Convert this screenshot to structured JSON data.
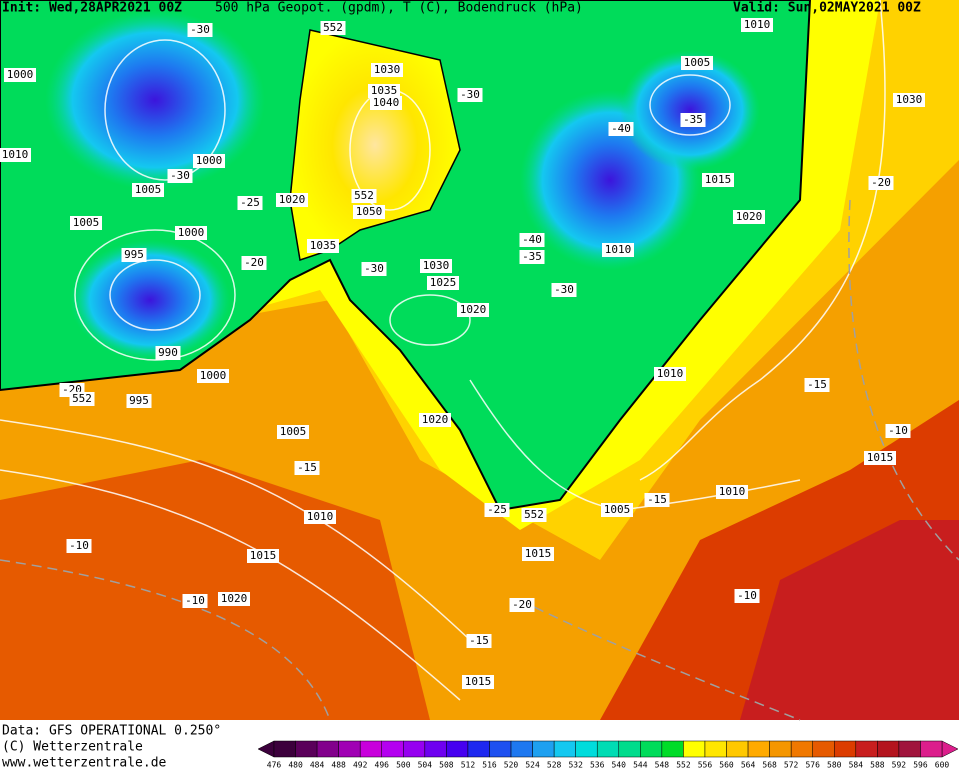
{
  "header": {
    "init": "Init: Wed,28APR2021 00Z",
    "title": "500 hPa Geopot. (gpdm), T (C), Bodendruck (hPa)",
    "valid": "Valid: Sun,02MAY2021 00Z"
  },
  "footer": {
    "data": "Data: GFS OPERATIONAL 0.250°",
    "copyright": "(C) Wetterzentrale",
    "url": "www.wetterzentrale.de"
  },
  "colorbar": {
    "labels": [
      476,
      480,
      484,
      488,
      492,
      496,
      500,
      504,
      508,
      512,
      516,
      520,
      524,
      528,
      532,
      536,
      540,
      544,
      548,
      552,
      556,
      560,
      564,
      568,
      572,
      576,
      580,
      584,
      588,
      592,
      596,
      600
    ],
    "colors": [
      "#3c003c",
      "#5a005a",
      "#82008c",
      "#a000b4",
      "#c800dc",
      "#b400f0",
      "#9600f0",
      "#6e00f0",
      "#4600f0",
      "#1e28f0",
      "#1e50f0",
      "#1e78f0",
      "#1ea0f0",
      "#14c8f0",
      "#00dcdc",
      "#00dcb4",
      "#00dc8c",
      "#00dc5a",
      "#00dc28",
      "#ffff00",
      "#ffe600",
      "#ffc800",
      "#ffaa00",
      "#f59600",
      "#f07800",
      "#e65a00",
      "#dc3c00",
      "#c81e1e",
      "#b4141e",
      "#a0143c",
      "#dc1e8c"
    ]
  },
  "map": {
    "labels": [
      "-30",
      "552",
      "1010",
      "1000",
      "1030",
      "1005",
      "1030",
      "1035",
      "1040",
      "-30",
      "-40",
      "-35",
      "1010",
      "1000",
      "-30",
      "1015",
      "-20",
      "1005",
      "1020",
      "-25",
      "552",
      "1050",
      "1020",
      "1005",
      "1000",
      "1035",
      "-40",
      "-35",
      "1010",
      "995",
      "-20",
      "-30",
      "1030",
      "1025",
      "-30",
      "1020",
      "990",
      "1000",
      "-20",
      "552",
      "995",
      "1010",
      "-15",
      "1020",
      "1005",
      "-10",
      "-15",
      "1015",
      "1010",
      "-15",
      "-25",
      "552",
      "1005",
      "1010",
      "-10",
      "1015",
      "1015",
      "-10",
      "1020",
      "-10",
      "-20",
      "-15",
      "1015"
    ]
  }
}
